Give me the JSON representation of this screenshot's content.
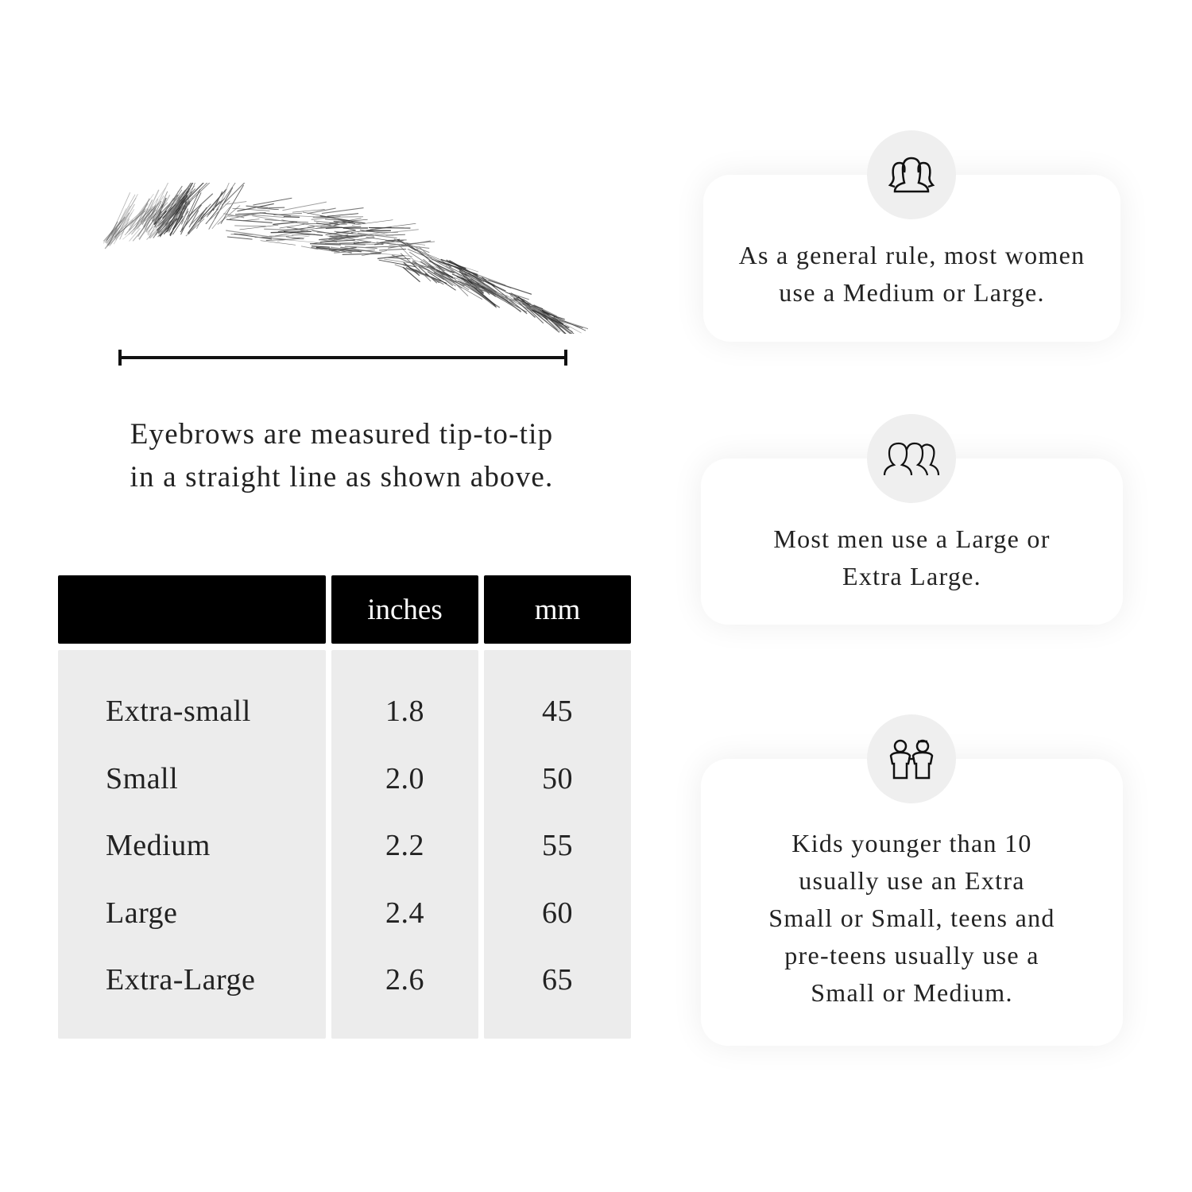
{
  "caption": {
    "line1": "Eyebrows are measured tip-to-tip",
    "line2": "in a straight line as shown above."
  },
  "table": {
    "headers": [
      "",
      "inches",
      "mm"
    ],
    "rows": [
      {
        "size": "Extra-small",
        "inches": "1.8",
        "mm": "45"
      },
      {
        "size": "Small",
        "inches": "2.0",
        "mm": "50"
      },
      {
        "size": "Medium",
        "inches": "2.2",
        "mm": "55"
      },
      {
        "size": "Large",
        "inches": "2.4",
        "mm": "60"
      },
      {
        "size": "Extra-Large",
        "inches": "2.6",
        "mm": "65"
      }
    ]
  },
  "cards": [
    {
      "icon": "women-group-icon",
      "lines": [
        "As a general rule, most women",
        "use a Medium or Large."
      ]
    },
    {
      "icon": "men-group-icon",
      "lines": [
        "Most men use a Large or",
        "Extra Large."
      ]
    },
    {
      "icon": "kids-icon",
      "lines": [
        "Kids younger than 10",
        "usually use an Extra",
        "Small or Small, teens and",
        "pre-teens usually use a",
        "Small or Medium."
      ]
    }
  ]
}
